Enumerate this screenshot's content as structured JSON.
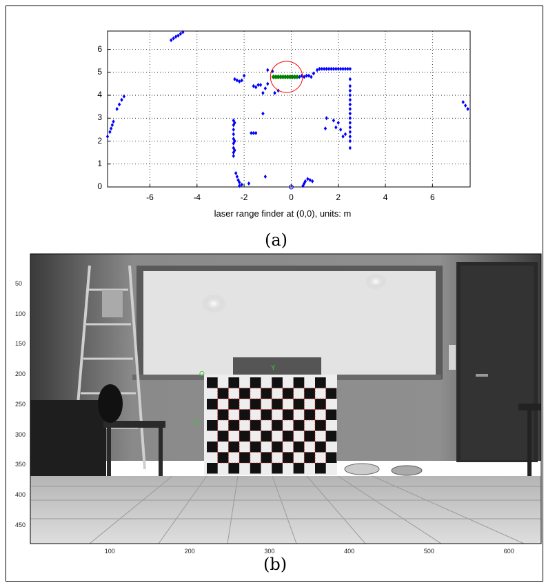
{
  "panel_a": {
    "caption": "(a)",
    "chart_data": {
      "type": "scatter",
      "xlabel": "laser range finder at (0,0), units: m",
      "ylabel": "",
      "title": "",
      "xlim": [
        -7.8,
        7.6
      ],
      "ylim": [
        0,
        6.8
      ],
      "x_ticks": [
        "-6",
        "-4",
        "-2",
        "0",
        "2",
        "4",
        "6"
      ],
      "y_ticks": [
        "0",
        "1",
        "2",
        "3",
        "4",
        "5",
        "6"
      ],
      "grid": true,
      "series": [
        {
          "color": "#0000ff",
          "marker": "diamond",
          "points": [
            [
              -5.1,
              6.4
            ],
            [
              -5.0,
              6.48
            ],
            [
              -4.9,
              6.55
            ],
            [
              -4.8,
              6.6
            ],
            [
              -4.7,
              6.68
            ],
            [
              -4.6,
              6.75
            ],
            [
              -7.8,
              2.2
            ],
            [
              -7.7,
              2.4
            ],
            [
              -7.65,
              2.55
            ],
            [
              -7.6,
              2.7
            ],
            [
              -7.55,
              2.85
            ],
            [
              -7.4,
              3.4
            ],
            [
              -7.3,
              3.6
            ],
            [
              -7.2,
              3.8
            ],
            [
              -7.1,
              3.95
            ],
            [
              7.3,
              3.7
            ],
            [
              7.4,
              3.55
            ],
            [
              7.5,
              3.4
            ],
            [
              -2.4,
              4.7
            ],
            [
              -2.3,
              4.65
            ],
            [
              -2.2,
              4.6
            ],
            [
              -2.1,
              4.65
            ],
            [
              -2.0,
              4.85
            ],
            [
              -1.6,
              4.4
            ],
            [
              -1.5,
              4.35
            ],
            [
              -1.4,
              4.45
            ],
            [
              -1.3,
              4.45
            ],
            [
              -1.2,
              4.1
            ],
            [
              -1.1,
              4.3
            ],
            [
              -1.0,
              4.5
            ],
            [
              -1.2,
              3.2
            ],
            [
              -0.7,
              4.1
            ],
            [
              -0.55,
              4.2
            ],
            [
              -2.45,
              2.9
            ],
            [
              -2.45,
              2.7
            ],
            [
              -2.45,
              2.5
            ],
            [
              -2.45,
              2.3
            ],
            [
              -2.45,
              2.1
            ],
            [
              -2.45,
              1.9
            ],
            [
              -2.45,
              1.7
            ],
            [
              -2.45,
              1.5
            ],
            [
              -2.45,
              1.35
            ],
            [
              -2.4,
              2.8
            ],
            [
              -2.4,
              2.0
            ],
            [
              -2.4,
              1.6
            ],
            [
              -1.7,
              2.35
            ],
            [
              -1.6,
              2.35
            ],
            [
              -1.5,
              2.35
            ],
            [
              -1.0,
              5.1
            ],
            [
              -0.8,
              5.05
            ],
            [
              0.25,
              4.8
            ],
            [
              0.35,
              4.8
            ],
            [
              0.45,
              4.85
            ],
            [
              0.55,
              4.8
            ],
            [
              0.65,
              4.85
            ],
            [
              0.75,
              4.85
            ],
            [
              0.85,
              4.8
            ],
            [
              0.95,
              4.95
            ],
            [
              1.1,
              5.1
            ],
            [
              1.2,
              5.15
            ],
            [
              1.3,
              5.15
            ],
            [
              1.4,
              5.15
            ],
            [
              1.5,
              5.15
            ],
            [
              1.6,
              5.15
            ],
            [
              1.7,
              5.15
            ],
            [
              1.8,
              5.15
            ],
            [
              1.9,
              5.15
            ],
            [
              2.0,
              5.15
            ],
            [
              2.1,
              5.15
            ],
            [
              2.2,
              5.15
            ],
            [
              2.3,
              5.15
            ],
            [
              2.4,
              5.15
            ],
            [
              2.5,
              5.15
            ],
            [
              2.5,
              4.7
            ],
            [
              2.5,
              4.4
            ],
            [
              2.5,
              4.2
            ],
            [
              2.5,
              4.0
            ],
            [
              2.5,
              3.8
            ],
            [
              2.5,
              3.6
            ],
            [
              2.5,
              3.4
            ],
            [
              2.5,
              3.2
            ],
            [
              2.5,
              3.0
            ],
            [
              2.5,
              2.8
            ],
            [
              2.5,
              2.6
            ],
            [
              2.5,
              2.4
            ],
            [
              2.5,
              2.2
            ],
            [
              2.5,
              2.0
            ],
            [
              2.5,
              1.7
            ],
            [
              2.3,
              2.3
            ],
            [
              2.2,
              2.2
            ],
            [
              2.1,
              2.5
            ],
            [
              2.0,
              2.8
            ],
            [
              1.9,
              2.6
            ],
            [
              1.8,
              2.9
            ],
            [
              1.5,
              3.0
            ],
            [
              1.45,
              2.55
            ],
            [
              -2.35,
              0.6
            ],
            [
              -2.3,
              0.45
            ],
            [
              -2.25,
              0.3
            ],
            [
              -2.2,
              0.2
            ],
            [
              -2.1,
              0.1
            ],
            [
              -2.2,
              0.05
            ],
            [
              -1.8,
              0.15
            ],
            [
              -1.1,
              0.45
            ],
            [
              0.5,
              0.05
            ],
            [
              0.55,
              0.15
            ],
            [
              0.6,
              0.25
            ],
            [
              0.7,
              0.35
            ],
            [
              0.8,
              0.3
            ],
            [
              0.9,
              0.25
            ]
          ]
        },
        {
          "color": "#008000",
          "marker": "star",
          "points": [
            [
              -0.75,
              4.8
            ],
            [
              -0.65,
              4.8
            ],
            [
              -0.55,
              4.8
            ],
            [
              -0.45,
              4.8
            ],
            [
              -0.35,
              4.8
            ],
            [
              -0.25,
              4.8
            ],
            [
              -0.15,
              4.8
            ],
            [
              -0.05,
              4.8
            ],
            [
              0.05,
              4.8
            ],
            [
              0.15,
              4.8
            ],
            [
              0.25,
              4.8
            ]
          ]
        }
      ],
      "annotations": [
        {
          "shape": "circle",
          "cx": -0.2,
          "cy": 4.8,
          "r": 0.68,
          "color": "#ff0000"
        },
        {
          "shape": "circle-marker",
          "x": 0,
          "y": 0,
          "color": "#0000ff"
        }
      ]
    }
  },
  "panel_b": {
    "caption": "(b)",
    "x_ticks": [
      "100",
      "200",
      "300",
      "400",
      "500",
      "600"
    ],
    "y_ticks": [
      "50",
      "100",
      "150",
      "200",
      "250",
      "300",
      "350",
      "400",
      "450"
    ],
    "labels": {
      "origin": "O",
      "x_axis": "X",
      "y_axis": "Y"
    },
    "colors": {
      "axis_label": "#33cc33",
      "corner_grid": "#cc2222"
    }
  }
}
